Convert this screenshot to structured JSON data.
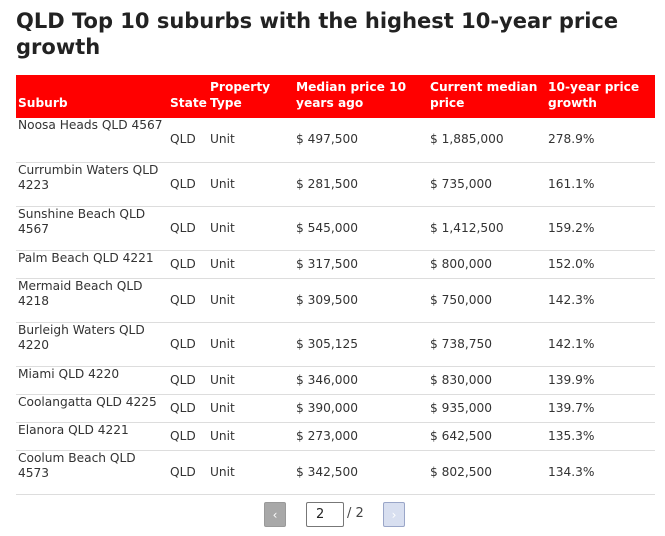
{
  "title": "QLD Top 10 suburbs with the highest 10-year price growth",
  "table": {
    "headers": [
      "Suburb",
      "State",
      "Property Type",
      "Median price 10 years ago",
      "Current median price",
      "10-year price growth"
    ],
    "rows": [
      [
        "Noosa Heads QLD 4567",
        "QLD",
        "Unit",
        "$ 497,500",
        "$ 1,885,000",
        "278.9%"
      ],
      [
        "Currumbin Waters QLD 4223",
        "QLD",
        "Unit",
        "$ 281,500",
        "$ 735,000",
        "161.1%"
      ],
      [
        "Sunshine Beach QLD 4567",
        "QLD",
        "Unit",
        "$ 545,000",
        "$ 1,412,500",
        "159.2%"
      ],
      [
        "Palm Beach QLD 4221",
        "QLD",
        "Unit",
        "$ 317,500",
        "$ 800,000",
        "152.0%"
      ],
      [
        "Mermaid Beach QLD 4218",
        "QLD",
        "Unit",
        "$ 309,500",
        "$ 750,000",
        "142.3%"
      ],
      [
        "Burleigh Waters QLD 4220",
        "QLD",
        "Unit",
        "$ 305,125",
        "$ 738,750",
        "142.1%"
      ],
      [
        "Miami QLD 4220",
        "QLD",
        "Unit",
        "$ 346,000",
        "$ 830,000",
        "139.9%"
      ],
      [
        "Coolangatta QLD 4225",
        "QLD",
        "Unit",
        "$ 390,000",
        "$ 935,000",
        "139.7%"
      ],
      [
        "Elanora QLD 4221",
        "QLD",
        "Unit",
        "$ 273,000",
        "$ 642,500",
        "135.3%"
      ],
      [
        "Coolum Beach QLD 4573",
        "QLD",
        "Unit",
        "$ 342,500",
        "$ 802,500",
        "134.3%"
      ]
    ]
  },
  "pagination": {
    "prev_label": "‹",
    "next_label": "›",
    "current_page": "2",
    "total_label": "/ 2"
  },
  "colors": {
    "header_bg": "#ff0000",
    "header_text": "#ffffff"
  }
}
